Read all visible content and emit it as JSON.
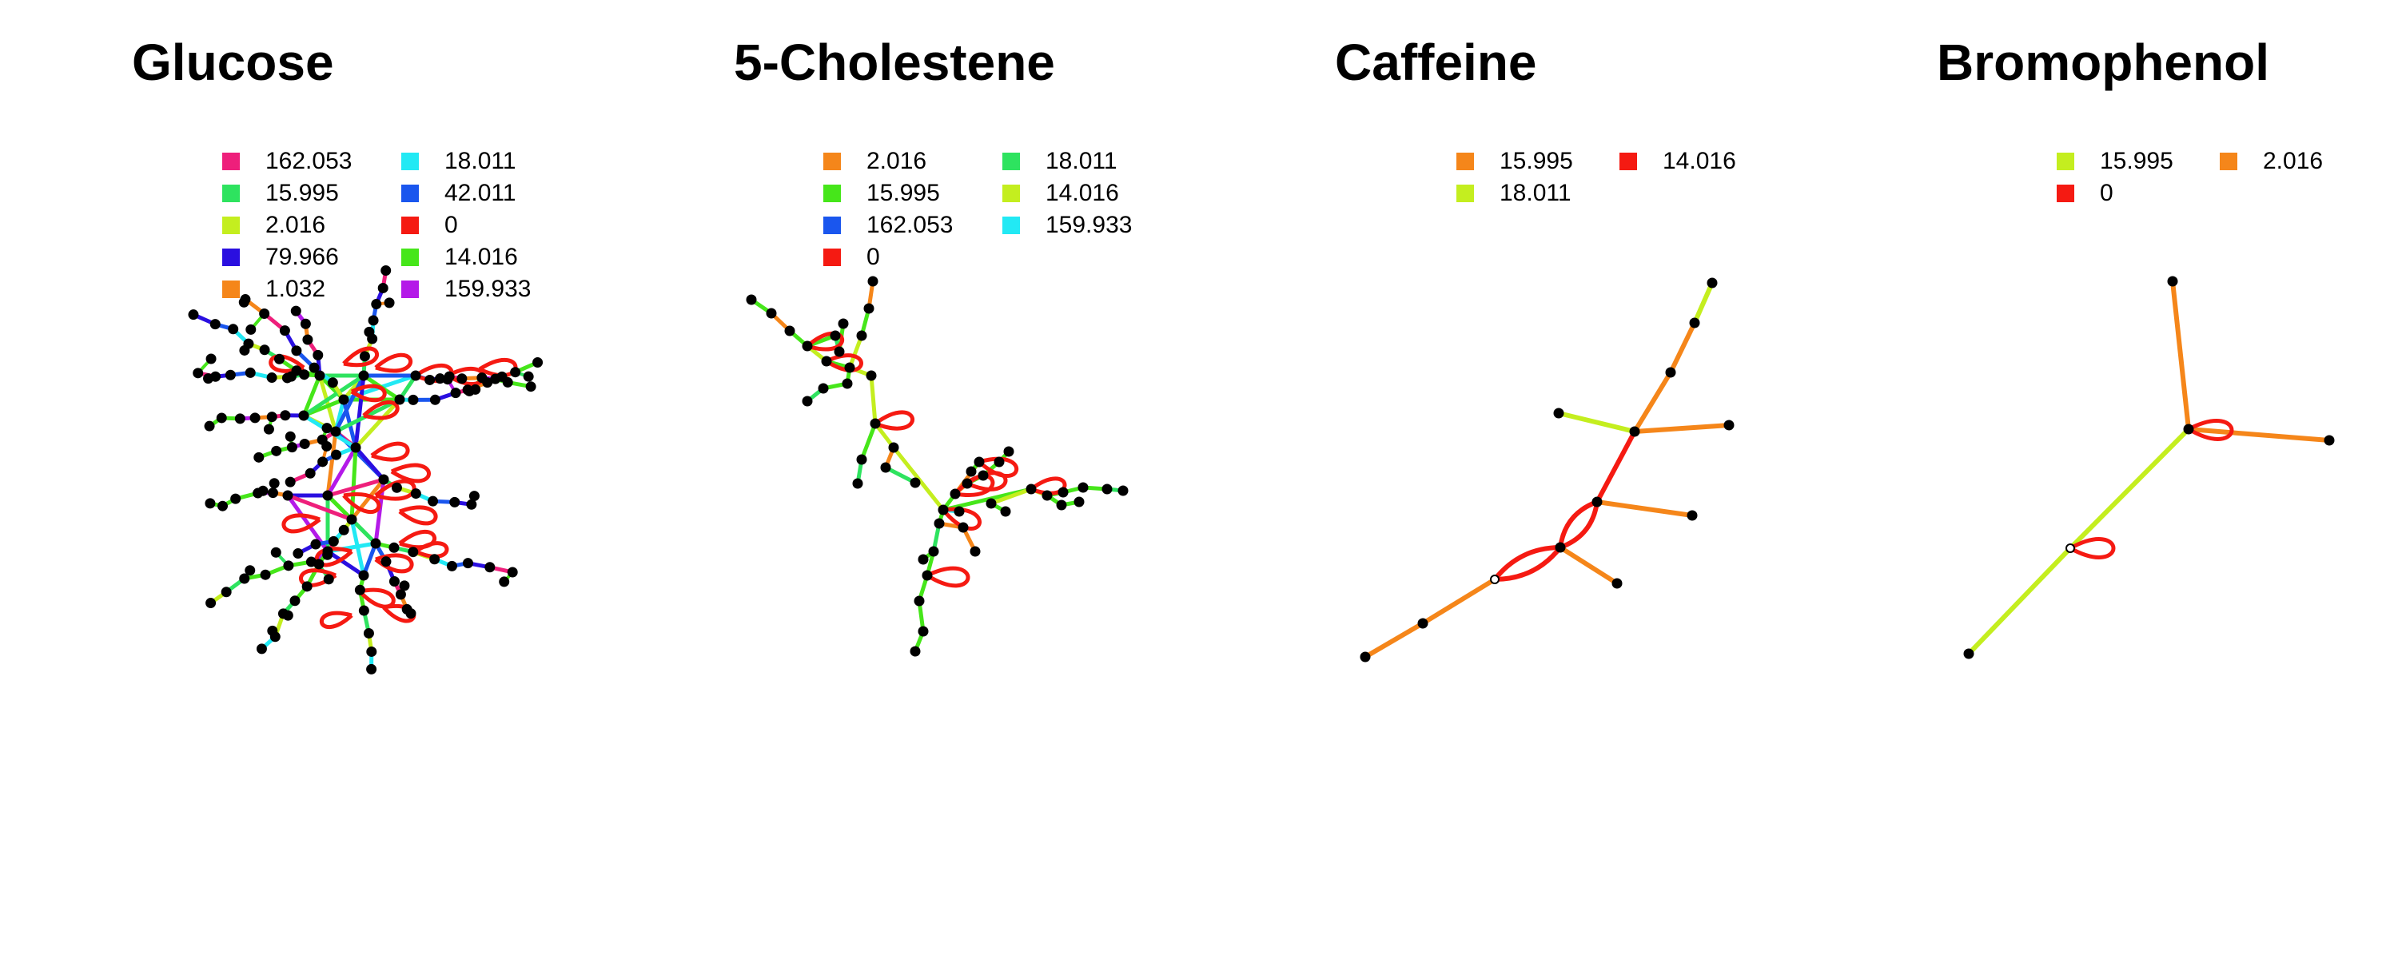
{
  "panels": [
    {
      "id": "glucose",
      "title": "Glucose",
      "legend": [
        {
          "label": "162.053",
          "color": "#ee1f7b"
        },
        {
          "label": "15.995",
          "color": "#2ee35f"
        },
        {
          "label": "2.016",
          "color": "#c4ee1f"
        },
        {
          "label": "79.966",
          "color": "#2a0fe0"
        },
        {
          "label": "1.032",
          "color": "#f5861a"
        },
        {
          "label": "18.011",
          "color": "#22e9f4"
        },
        {
          "label": "42.011",
          "color": "#1a56ee"
        },
        {
          "label": "0",
          "color": "#f51a12"
        },
        {
          "label": "14.016",
          "color": "#46e61a"
        },
        {
          "label": "159.933",
          "color": "#b41ae8"
        }
      ]
    },
    {
      "id": "cholestene",
      "title": "5-Cholestene",
      "legend": [
        {
          "label": "2.016",
          "color": "#f5861a"
        },
        {
          "label": "15.995",
          "color": "#46e61a"
        },
        {
          "label": "162.053",
          "color": "#1a56ee"
        },
        {
          "label": "0",
          "color": "#f51a12"
        },
        {
          "label": "18.011",
          "color": "#2ee35f"
        },
        {
          "label": "14.016",
          "color": "#c4ee1f"
        },
        {
          "label": "159.933",
          "color": "#22e9f4"
        }
      ]
    },
    {
      "id": "caffeine",
      "title": "Caffeine",
      "legend": [
        {
          "label": "15.995",
          "color": "#f5861a"
        },
        {
          "label": "18.011",
          "color": "#c4ee1f"
        },
        {
          "label": "14.016",
          "color": "#f51a12"
        }
      ]
    },
    {
      "id": "bromophenol",
      "title": "Bromophenol",
      "legend": [
        {
          "label": "15.995",
          "color": "#c4ee1f"
        },
        {
          "label": "0",
          "color": "#f51a12"
        },
        {
          "label": "2.016",
          "color": "#f5861a"
        }
      ]
    }
  ]
}
